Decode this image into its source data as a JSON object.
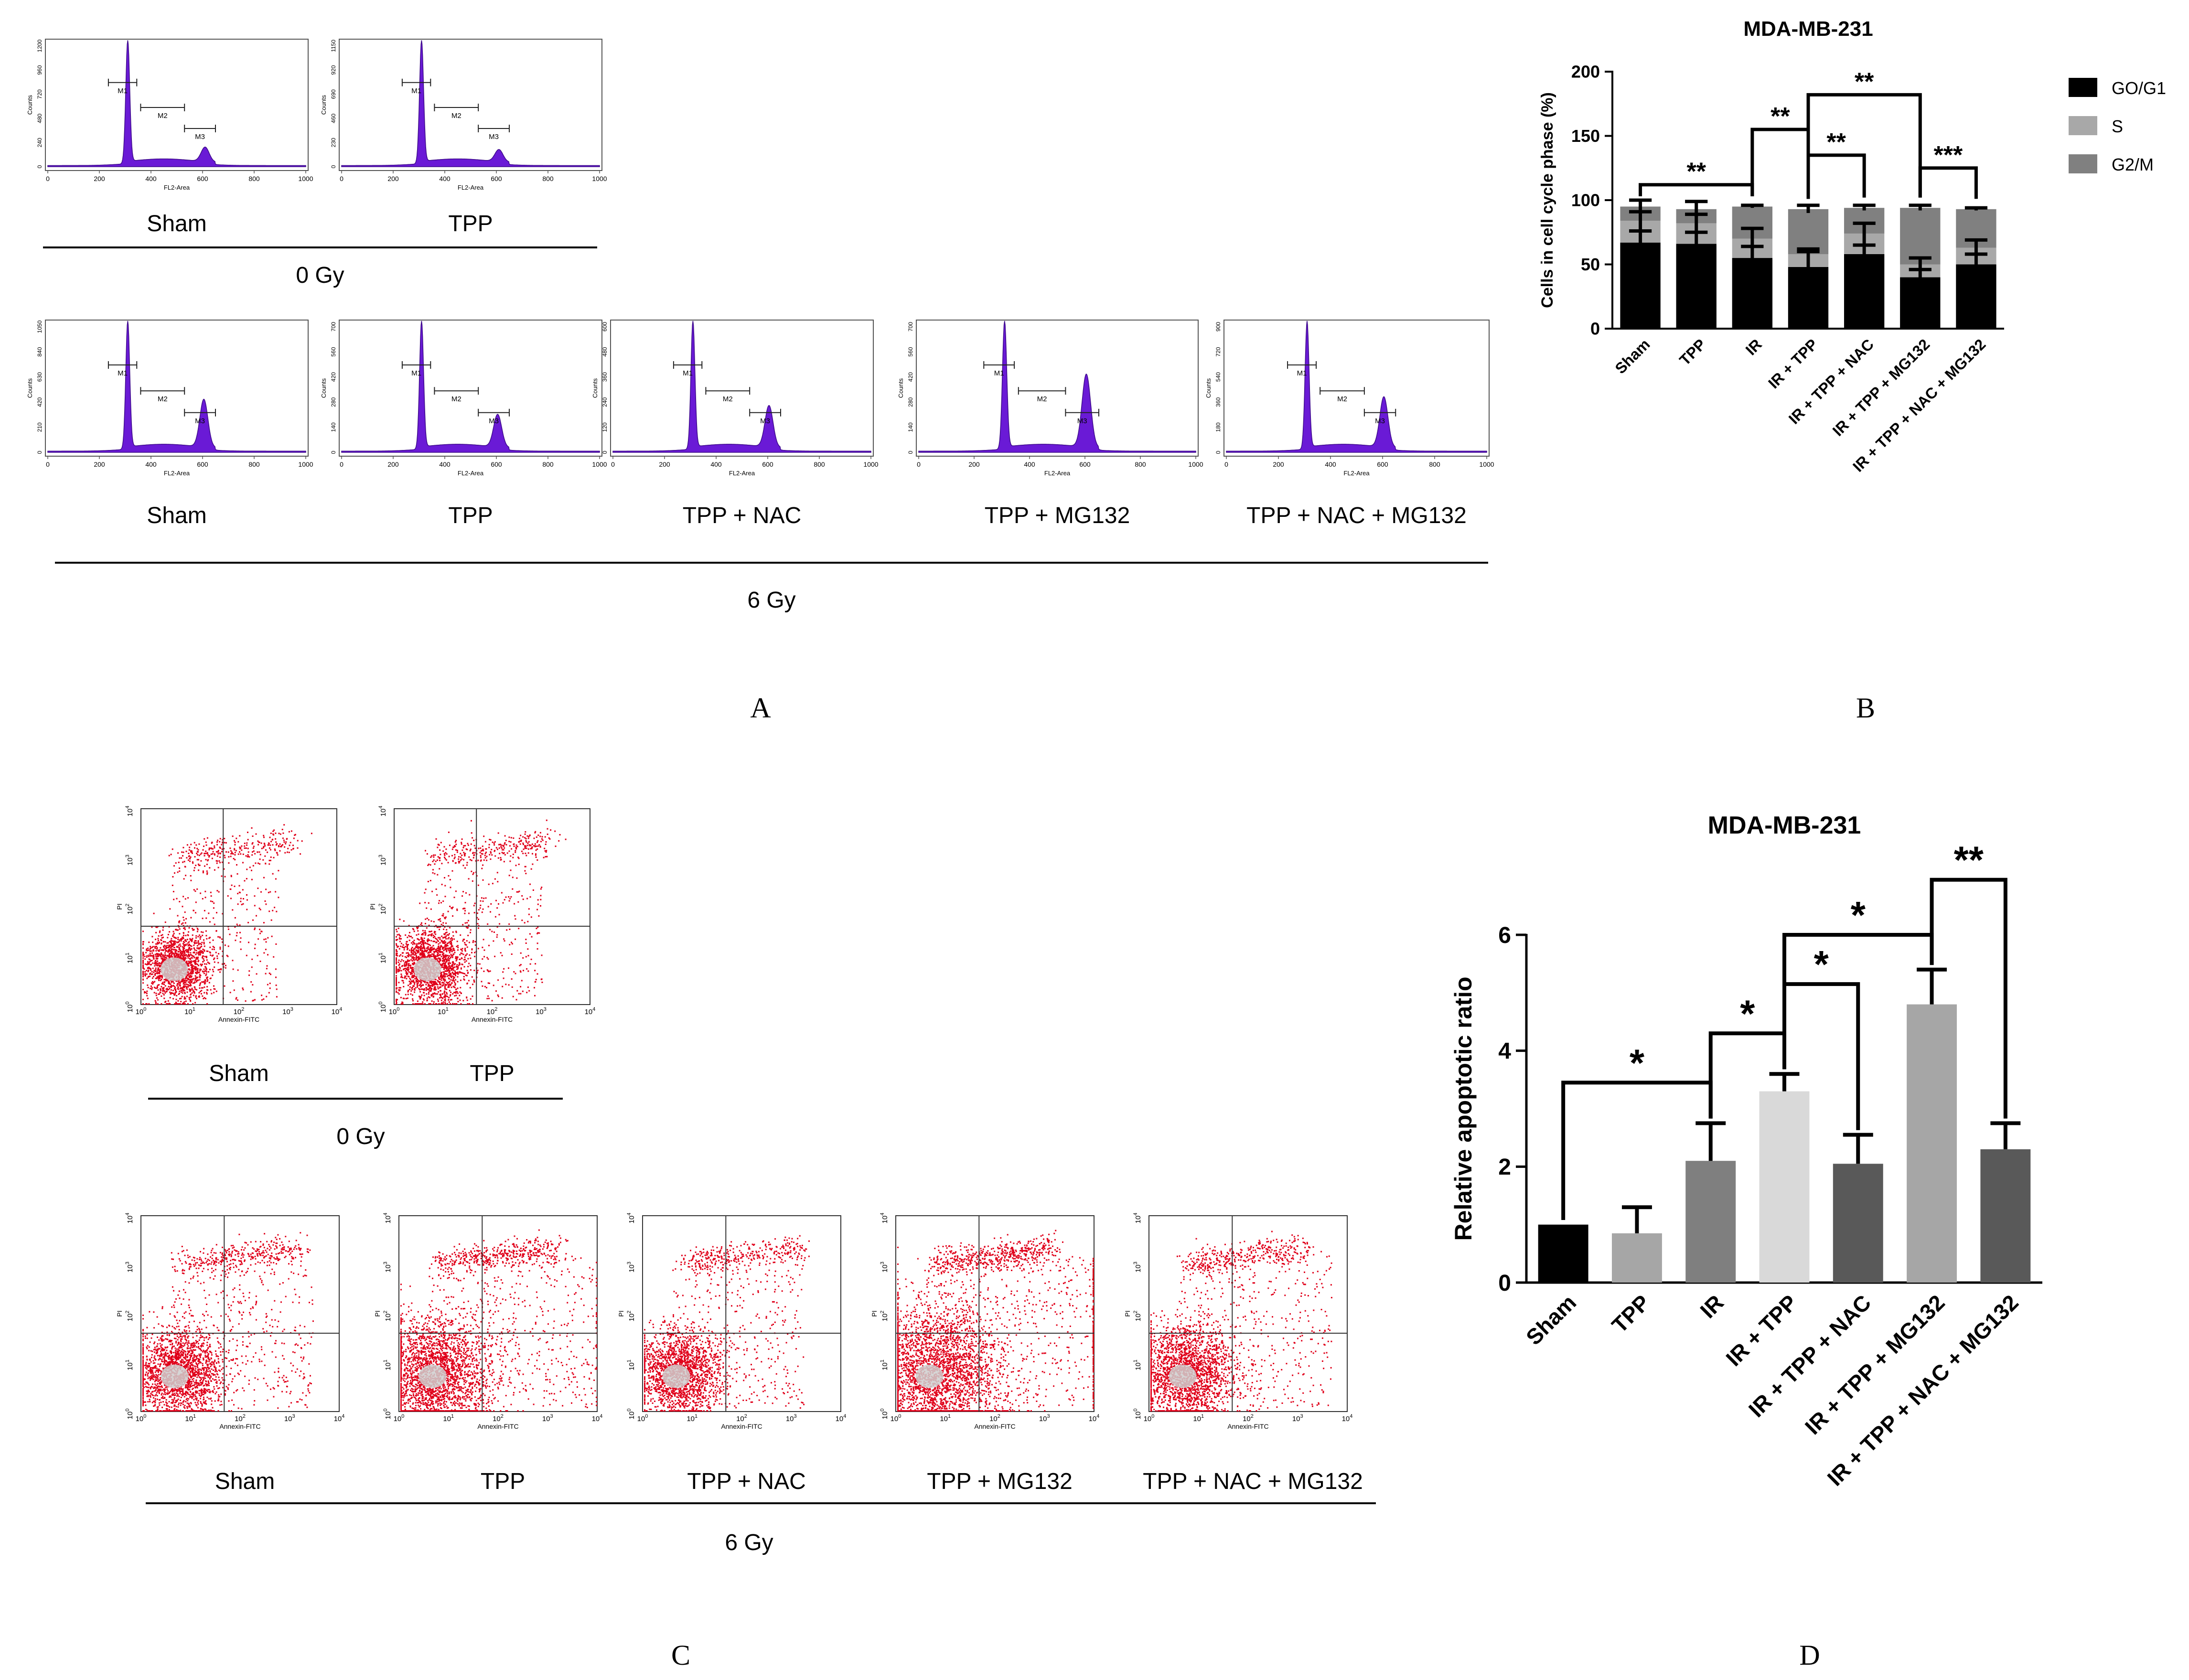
{
  "panels": {
    "A": "A",
    "B": "B",
    "C": "C",
    "D": "D"
  },
  "panel_a": {
    "x_axis_label": "FL2-Area",
    "y_axis_label": "Counts",
    "x_ticks": [
      "0",
      "200",
      "400",
      "600",
      "800",
      "1000"
    ],
    "markers": [
      "M1",
      "M2",
      "M3"
    ],
    "dose_0": {
      "label": "0 Gy",
      "conditions": [
        "Sham",
        "TPP"
      ]
    },
    "dose_6": {
      "label": "6 Gy",
      "conditions": [
        "Sham",
        "TPP",
        "TPP + NAC",
        "TPP + MG132",
        "TPP + NAC + MG132"
      ]
    },
    "ymax_0": [
      1200,
      1150
    ],
    "ymax_6": [
      1050,
      700,
      600,
      700,
      900
    ],
    "g2m_peak": [
      0.12,
      0.1,
      0.38,
      0.26,
      0.33,
      0.58,
      0.4
    ],
    "g1_peak": [
      1.0,
      1.0,
      1.0,
      1.0,
      1.0,
      1.0,
      1.0
    ]
  },
  "panel_c": {
    "x_axis_label": "Annexin-FITC",
    "y_axis_label": "PI",
    "ticks": [
      "10",
      "10",
      "10",
      "10",
      "10"
    ],
    "exponents": [
      "0",
      "1",
      "2",
      "3",
      "4"
    ],
    "dose_0": {
      "label": "0 Gy",
      "conditions": [
        "Sham",
        "TPP"
      ]
    },
    "dose_6": {
      "label": "6 Gy",
      "conditions": [
        "Sham",
        "TPP",
        "TPP + NAC",
        "TPP + MG132",
        "TPP + NAC + MG132"
      ]
    },
    "dot_color": "#e0001a",
    "density_0": [
      1.0,
      1.1
    ],
    "density_6": [
      1.3,
      1.6,
      1.2,
      2.0,
      1.4
    ]
  },
  "chart_data": [
    {
      "type": "bar",
      "stacked": true,
      "title": "MDA-MB-231",
      "xlabel": "",
      "ylabel": "Cells in cell cycle phase (%)",
      "ylim": [
        0,
        200
      ],
      "yticks": [
        "0",
        "50",
        "100",
        "150",
        "200"
      ],
      "categories": [
        "Sham",
        "TPP",
        "IR",
        "IR + TPP",
        "IR + TPP + NAC",
        "IR + TPP + MG132",
        "IR + TPP + NAC + MG132"
      ],
      "series": [
        {
          "name": "GO/G1",
          "color": "#000000",
          "values": [
            67,
            66,
            55,
            48,
            58,
            40,
            50
          ],
          "errors": [
            9,
            9,
            9,
            12,
            7,
            6,
            8
          ]
        },
        {
          "name": "S",
          "color": "#a8a8a8",
          "values": [
            17,
            16,
            15,
            10,
            16,
            10,
            13
          ],
          "errors": [
            7,
            7,
            8,
            4,
            8,
            5,
            6
          ]
        },
        {
          "name": "G2/M",
          "color": "#808080",
          "values": [
            11,
            11,
            25,
            35,
            20,
            44,
            30
          ],
          "errors": [
            5,
            6,
            1,
            3,
            2,
            2,
            1
          ]
        }
      ],
      "significance": [
        {
          "from": 0,
          "to": 2,
          "label": "**"
        },
        {
          "from": 2,
          "to": 3,
          "label": "**"
        },
        {
          "from": 3,
          "to": 4,
          "label": "**"
        },
        {
          "from": 3,
          "to": 5,
          "label": "**"
        },
        {
          "from": 5,
          "to": 6,
          "label": "***"
        }
      ]
    },
    {
      "type": "bar",
      "title": "MDA-MB-231",
      "xlabel": "",
      "ylabel": "Relative apoptotic ratio",
      "ylim": [
        0,
        6
      ],
      "yticks": [
        "0",
        "2",
        "4",
        "6"
      ],
      "categories": [
        "Sham",
        "TPP",
        "IR",
        "IR + TPP",
        "IR + TPP + NAC",
        "IR + TPP + MG132",
        "IR + TPP + NAC + MG132"
      ],
      "values": [
        1.0,
        0.85,
        2.1,
        3.3,
        2.05,
        4.8,
        2.3
      ],
      "errors": [
        0.0,
        0.45,
        0.65,
        0.3,
        0.5,
        0.6,
        0.45
      ],
      "colors": [
        "#000000",
        "#a6a6a6",
        "#7f7f7f",
        "#d9d9d9",
        "#595959",
        "#a6a6a6",
        "#595959"
      ],
      "significance": [
        {
          "from": 0,
          "to": 2,
          "label": "*"
        },
        {
          "from": 2,
          "to": 3,
          "label": "*"
        },
        {
          "from": 3,
          "to": 4,
          "label": "*"
        },
        {
          "from": 3,
          "to": 5,
          "label": "*"
        },
        {
          "from": 5,
          "to": 6,
          "label": "**"
        }
      ]
    }
  ]
}
